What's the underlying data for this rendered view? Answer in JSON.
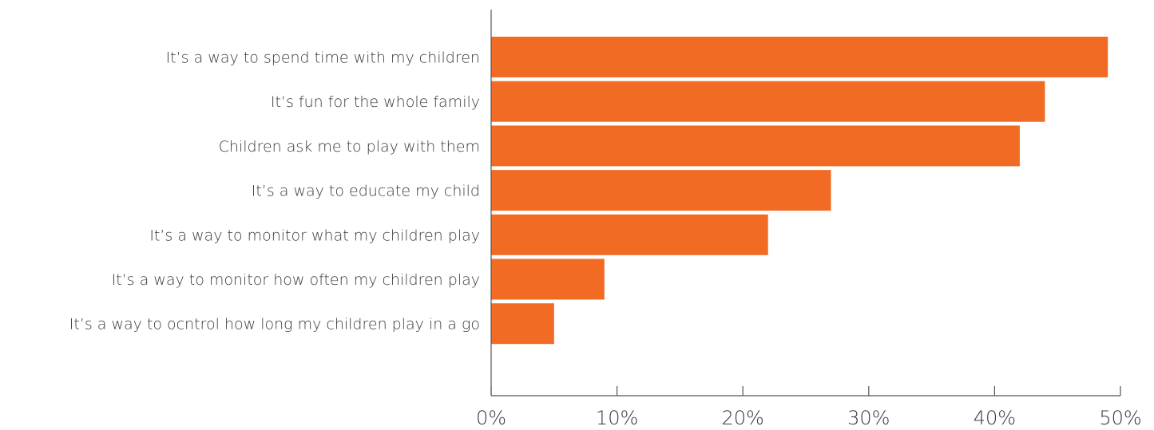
{
  "chart_data": {
    "type": "bar",
    "orientation": "horizontal",
    "categories": [
      "It’s a way to spend time with my children",
      "It’s fun for the whole family",
      "Children ask me to play with them",
      "It’s a way to educate my child",
      "It’s a way to monitor what my children play",
      "It’s a way to monitor how often my children play",
      "It’s a way to ocntrol how long my children play in a go"
    ],
    "values": [
      49,
      44,
      42,
      27,
      22,
      9,
      5
    ],
    "xlim": [
      0,
      50
    ],
    "xticks": [
      0,
      10,
      20,
      30,
      40,
      50
    ],
    "xtick_labels": [
      "0%",
      "10%",
      "20%",
      "30%",
      "40%",
      "50%"
    ],
    "title": "",
    "xlabel": "",
    "ylabel": "",
    "grid": false,
    "bar_color": "#f26b25"
  }
}
